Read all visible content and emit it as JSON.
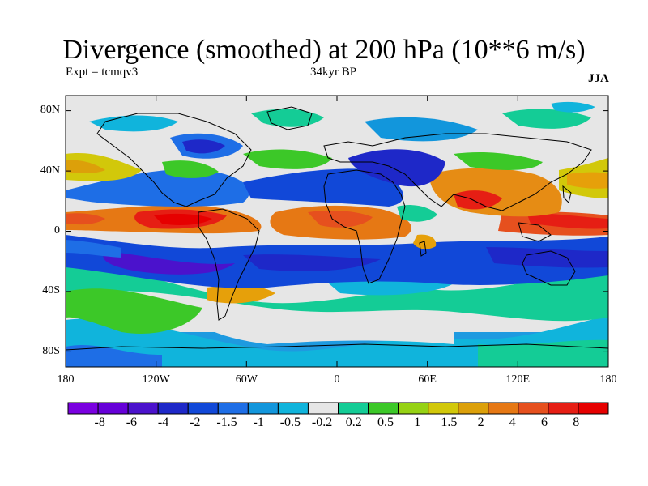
{
  "header": {
    "title": "Divergence (smoothed) at 200 hPa (10**6 m/s)",
    "experiment": "Expt = tcmqv3",
    "period": "34kyr BP",
    "season": "JJA"
  },
  "map": {
    "projection": "cylindrical equidistant",
    "lon_range": [
      -180,
      180
    ],
    "lat_range": [
      -90,
      90
    ],
    "lat_ticks": [
      "80N",
      "40N",
      "0",
      "40S",
      "80S"
    ],
    "lon_ticks": [
      "180",
      "120W",
      "60W",
      "0",
      "60E",
      "120E",
      "180"
    ]
  },
  "colorbar": {
    "colors": [
      "#7a00e0",
      "#6600d8",
      "#4b12cc",
      "#1e28c8",
      "#1148d8",
      "#1e6ee6",
      "#1296dc",
      "#10b4dc",
      "#e6e6e6",
      "#14cc96",
      "#3cc828",
      "#96d214",
      "#d2c80a",
      "#dca00a",
      "#e67814",
      "#e6501e",
      "#e61e14",
      "#e60000"
    ],
    "labels": [
      "-8",
      "-6",
      "-4",
      "-2",
      "-1.5",
      "-1",
      "-0.5",
      "-0.2",
      "0.2",
      "0.5",
      "1",
      "1.5",
      "2",
      "4",
      "6",
      "8"
    ]
  }
}
